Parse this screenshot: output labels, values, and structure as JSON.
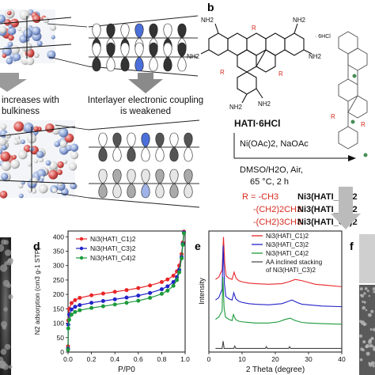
{
  "panels": {
    "b_letter": "b",
    "d_letter": "d",
    "e_letter": "e",
    "f_letter": "f"
  },
  "panel_a": {
    "caption_left_1": "increases with",
    "caption_left_2": "bulkiness",
    "caption_right_1": "Interlayer electronic coupling",
    "caption_right_2": "is weakened"
  },
  "panel_b": {
    "ligand_name": "HATI·6HCl",
    "hcl_label": "· 6HCl",
    "nh2": "NH2",
    "r_label": "R",
    "reagents": "Ni(OAc)2, NaOAc",
    "solvent": "DMSO/H2O, Air,",
    "conditions": "65 °C, 2 h",
    "r_groups": [
      {
        "r": "R = -CH3",
        "product": "Ni3(HATI_C1)2"
      },
      {
        "r": "-(CH2)2CH3",
        "product": "Ni3(HATI_C3)2"
      },
      {
        "r": "-(CH2)3CH3",
        "product": "Ni3(HATI_C4)2"
      }
    ],
    "colors": {
      "r_red": "#d62b1f",
      "dark": "#111111"
    }
  },
  "chart_data": [
    {
      "type": "line",
      "panel": "d",
      "xlabel": "P/P0",
      "ylabel": "N2 adsorption (cm3 g-1 STP)",
      "xlim": [
        0.0,
        1.0
      ],
      "ylim": [
        0,
        420
      ],
      "xticks": [
        "0.0",
        "0.2",
        "0.4",
        "0.6",
        "0.8",
        "1.0"
      ],
      "yticks": [
        "0",
        "50",
        "100",
        "150",
        "200",
        "250",
        "300",
        "350",
        "400"
      ],
      "legend": "top-left",
      "series": [
        {
          "name": "Ni3(HATI_C1)2",
          "color": "#e8262a",
          "x": [
            0.0,
            0.002,
            0.01,
            0.03,
            0.06,
            0.1,
            0.2,
            0.3,
            0.4,
            0.5,
            0.6,
            0.7,
            0.8,
            0.85,
            0.9,
            0.93,
            0.95,
            0.97,
            0.98,
            0.99
          ],
          "y": [
            20,
            110,
            150,
            170,
            180,
            188,
            197,
            203,
            209,
            215,
            222,
            231,
            243,
            252,
            265,
            280,
            300,
            340,
            380,
            418
          ]
        },
        {
          "name": "Ni3(HATI_C3)2",
          "color": "#2323c8",
          "x": [
            0.0,
            0.002,
            0.01,
            0.03,
            0.06,
            0.1,
            0.2,
            0.3,
            0.4,
            0.5,
            0.6,
            0.7,
            0.8,
            0.85,
            0.9,
            0.93,
            0.95,
            0.97,
            0.98,
            0.99
          ],
          "y": [
            12,
            95,
            130,
            148,
            157,
            163,
            171,
            177,
            183,
            189,
            196,
            205,
            218,
            228,
            243,
            260,
            285,
            330,
            375,
            415
          ]
        },
        {
          "name": "Ni3(HATI_C4)2",
          "color": "#1c9a3a",
          "x": [
            0.0,
            0.002,
            0.01,
            0.03,
            0.06,
            0.1,
            0.2,
            0.3,
            0.4,
            0.5,
            0.6,
            0.7,
            0.8,
            0.85,
            0.9,
            0.93,
            0.95,
            0.97,
            0.98,
            0.99
          ],
          "y": [
            8,
            82,
            112,
            130,
            139,
            145,
            153,
            159,
            165,
            171,
            178,
            188,
            202,
            213,
            230,
            250,
            277,
            325,
            372,
            412
          ]
        }
      ]
    },
    {
      "type": "line",
      "panel": "e",
      "xlabel": "2 Theta (degree)",
      "ylabel": "Intensity",
      "xlim": [
        0,
        40
      ],
      "xticks": [
        "0",
        "10",
        "20",
        "30",
        "40"
      ],
      "legend": "top-right",
      "series": [
        {
          "name": "Ni3(HATI_C1)2",
          "color": "#e8262a",
          "x": [
            2,
            3,
            4,
            4.4,
            4.8,
            5.2,
            6,
            7,
            7.6,
            8.2,
            9,
            10,
            12,
            14,
            18,
            22,
            24,
            26,
            28,
            30,
            32,
            36,
            40
          ],
          "y": [
            0.6,
            0.62,
            0.68,
            0.95,
            0.72,
            0.63,
            0.61,
            0.6,
            0.66,
            0.61,
            0.59,
            0.58,
            0.57,
            0.565,
            0.56,
            0.565,
            0.58,
            0.6,
            0.59,
            0.575,
            0.56,
            0.55,
            0.54
          ]
        },
        {
          "name": "Ni3(HATI_C3)2",
          "color": "#2323c8",
          "x": [
            2,
            3,
            4,
            4.3,
            4.7,
            5.1,
            6,
            7,
            7.5,
            8.1,
            9,
            10,
            12,
            14,
            18,
            22,
            24,
            25,
            26.5,
            28,
            30,
            34,
            40
          ],
          "y": [
            0.43,
            0.45,
            0.52,
            0.88,
            0.56,
            0.46,
            0.44,
            0.43,
            0.49,
            0.44,
            0.42,
            0.41,
            0.4,
            0.395,
            0.39,
            0.4,
            0.42,
            0.43,
            0.41,
            0.395,
            0.39,
            0.38,
            0.375
          ]
        },
        {
          "name": "Ni3(HATI_C4)2",
          "color": "#1c9a3a",
          "x": [
            2,
            3,
            4,
            4.2,
            4.6,
            5.0,
            6,
            7,
            7.4,
            8.0,
            9,
            10,
            12,
            14,
            18,
            21,
            23,
            24.5,
            26,
            28,
            30,
            34,
            40
          ],
          "y": [
            0.27,
            0.29,
            0.34,
            0.62,
            0.36,
            0.29,
            0.27,
            0.26,
            0.31,
            0.27,
            0.255,
            0.25,
            0.245,
            0.24,
            0.24,
            0.25,
            0.27,
            0.28,
            0.26,
            0.245,
            0.24,
            0.235,
            0.23
          ]
        },
        {
          "name": "AA inclined stacking of Ni3(HATI_C3)2",
          "color": "#444444",
          "x": [
            2,
            4,
            4.3,
            4.6,
            6,
            7.5,
            7.8,
            8.1,
            9,
            12,
            17,
            17.3,
            17.6,
            20,
            24,
            24.3,
            24.6,
            28,
            40
          ],
          "y": [
            0.03,
            0.03,
            0.09,
            0.03,
            0.03,
            0.03,
            0.05,
            0.03,
            0.03,
            0.03,
            0.03,
            0.045,
            0.03,
            0.03,
            0.03,
            0.045,
            0.03,
            0.03,
            0.03
          ]
        }
      ]
    }
  ]
}
